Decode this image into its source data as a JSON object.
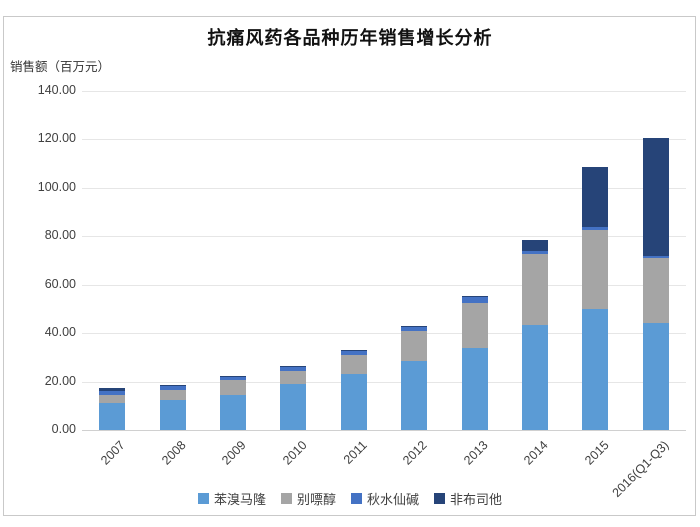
{
  "title": "抗痛风药各品种历年销售增长分析",
  "unit_label": "销售额（百万元）",
  "chart_data": {
    "type": "bar",
    "subtype": "stacked",
    "title": "抗痛风药各品种历年销售增长分析",
    "ylabel": "销售额（百万元）",
    "xlabel": "",
    "categories": [
      "2007",
      "2008",
      "2009",
      "2010",
      "2011",
      "2012",
      "2013",
      "2014",
      "2015",
      "2016(Q1-Q3)"
    ],
    "series": [
      {
        "name": "苯溴马隆",
        "color": "#5B9BD5",
        "values": [
          11,
          12.5,
          14.5,
          19,
          23,
          28.5,
          34,
          43.5,
          50,
          44
        ]
      },
      {
        "name": "别嘌醇",
        "color": "#A5A5A5",
        "values": [
          3.5,
          4,
          6,
          5.5,
          8,
          12.5,
          18.5,
          29,
          32.5,
          27
        ]
      },
      {
        "name": "秋水仙碱",
        "color": "#4472C4",
        "values": [
          1.5,
          1.5,
          1.5,
          1.5,
          1.5,
          1.5,
          2.5,
          1.5,
          1.5,
          1
        ]
      },
      {
        "name": "非布司他",
        "color": "#264478",
        "values": [
          1.5,
          0.5,
          0.5,
          0.5,
          0.5,
          0.5,
          0.5,
          4.5,
          24.5,
          48.5
        ]
      }
    ],
    "totals": [
      17.5,
      18.5,
      22.5,
      26.5,
      33,
      43,
      55.5,
      78.5,
      108.5,
      120.5
    ],
    "ylim": [
      0,
      140
    ],
    "ytick_step": 20,
    "ytick_labels": [
      "0.00",
      "20.00",
      "40.00",
      "60.00",
      "80.00",
      "100.00",
      "120.00",
      "140.00"
    ],
    "grid": true,
    "legend_position": "bottom",
    "colors": {
      "grid": "#e6e6e6",
      "axis_line": "#d0d0d0",
      "tick_text": "#404040",
      "title_text": "#111111",
      "frame_border": "#c9c9c9",
      "background": "#ffffff"
    }
  }
}
